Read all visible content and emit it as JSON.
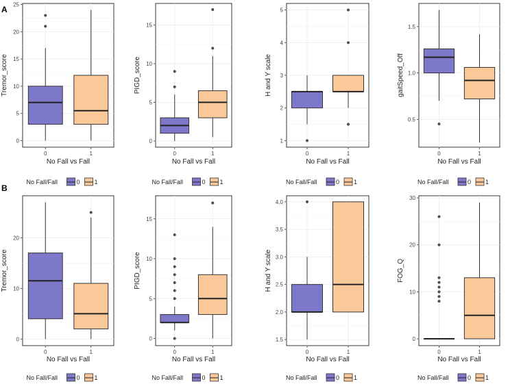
{
  "colors": {
    "group0": "#7d78c9",
    "group1": "#fbc999",
    "grid_major": "#ebebeb",
    "grid_minor": "#f5f5f5"
  },
  "rows": [
    {
      "label": "A"
    },
    {
      "label": "B"
    }
  ],
  "chart_data": [
    {
      "type": "box",
      "row": 0,
      "col": 0,
      "ylabel": "Tremor_score",
      "xlabel": "No Fall vs Fall",
      "categories": [
        "0",
        "1"
      ],
      "ylim": [
        -1.2,
        25.2
      ],
      "yticks": [
        0,
        5,
        10,
        15,
        20,
        25
      ],
      "boxes": [
        {
          "q1": 3,
          "median": 7,
          "q3": 10,
          "whisker_low": 0,
          "whisker_high": 17,
          "outliers": [
            21,
            23
          ]
        },
        {
          "q1": 3,
          "median": 5.5,
          "q3": 12,
          "whisker_low": 0,
          "whisker_high": 24,
          "outliers": []
        }
      ],
      "legend": {
        "title": "No Fall/Fall",
        "labels": [
          "0",
          "1"
        ]
      }
    },
    {
      "type": "box",
      "row": 0,
      "col": 1,
      "ylabel": "PIGD_score",
      "xlabel": "No Fall vs Fall",
      "categories": [
        "0",
        "1"
      ],
      "ylim": [
        -0.8,
        17.8
      ],
      "yticks": [
        0,
        5,
        10,
        15
      ],
      "boxes": [
        {
          "q1": 1,
          "median": 2,
          "q3": 3,
          "whisker_low": 0,
          "whisker_high": 6,
          "outliers": [
            7,
            9
          ]
        },
        {
          "q1": 3,
          "median": 5,
          "q3": 6.5,
          "whisker_low": 0.5,
          "whisker_high": 11,
          "outliers": [
            12,
            17
          ]
        }
      ],
      "legend": {
        "title": "No Fall/Fall",
        "labels": [
          "0",
          "1"
        ]
      }
    },
    {
      "type": "box",
      "row": 0,
      "col": 2,
      "ylabel": "H and Y scale",
      "xlabel": "No Fall vs Fall",
      "categories": [
        "0",
        "1"
      ],
      "ylim": [
        0.8,
        5.2
      ],
      "yticks": [
        1,
        2,
        3,
        4,
        5
      ],
      "boxes": [
        {
          "q1": 2,
          "median": 2.5,
          "q3": 2.5,
          "whisker_low": 1.5,
          "whisker_high": 3,
          "outliers": [
            1
          ]
        },
        {
          "q1": 2.5,
          "median": 2.5,
          "q3": 3,
          "whisker_low": 2,
          "whisker_high": 3,
          "outliers": [
            1.5,
            4,
            5
          ]
        }
      ],
      "legend": {
        "title": "No Fall/Fall",
        "labels": [
          "0",
          "1"
        ]
      }
    },
    {
      "type": "box",
      "row": 0,
      "col": 3,
      "ylabel": "gaitSpeed_Off",
      "xlabel": "No Fall vs Fall",
      "categories": [
        "0",
        "1"
      ],
      "ylim": [
        0.2,
        1.75
      ],
      "yticks": [
        0.5,
        1.0,
        1.5
      ],
      "boxes": [
        {
          "q1": 1.0,
          "median": 1.17,
          "q3": 1.26,
          "whisker_low": 0.7,
          "whisker_high": 1.68,
          "outliers": [
            0.45
          ]
        },
        {
          "q1": 0.72,
          "median": 0.92,
          "q3": 1.06,
          "whisker_low": 0.25,
          "whisker_high": 1.42,
          "outliers": []
        }
      ],
      "legend": {
        "title": "No Fall/Fall",
        "labels": [
          "0",
          "1"
        ]
      }
    },
    {
      "type": "box",
      "row": 1,
      "col": 0,
      "ylabel": "Tremor_score",
      "xlabel": "No Fall vs Fall",
      "categories": [
        "0",
        "1"
      ],
      "ylim": [
        -1.3,
        28.3
      ],
      "yticks": [
        0,
        10,
        20
      ],
      "boxes": [
        {
          "q1": 4,
          "median": 11.5,
          "q3": 17,
          "whisker_low": 0,
          "whisker_high": 27,
          "outliers": []
        },
        {
          "q1": 2,
          "median": 5,
          "q3": 11,
          "whisker_low": 0,
          "whisker_high": 24,
          "outliers": [
            25
          ]
        }
      ],
      "legend": {
        "title": "No Fall/Fall",
        "labels": [
          "0",
          "1"
        ]
      }
    },
    {
      "type": "box",
      "row": 1,
      "col": 1,
      "ylabel": "PIGD_score",
      "xlabel": "No Fall vs Fall",
      "categories": [
        "0",
        "1"
      ],
      "ylim": [
        -0.9,
        17.9
      ],
      "yticks": [
        0,
        5,
        10,
        15
      ],
      "boxes": [
        {
          "q1": 2,
          "median": 2,
          "q3": 3,
          "whisker_low": 1,
          "whisker_high": 4,
          "outliers": [
            0,
            5,
            6,
            7,
            8,
            9,
            10,
            13
          ]
        },
        {
          "q1": 3,
          "median": 5,
          "q3": 8,
          "whisker_low": 0,
          "whisker_high": 14,
          "outliers": [
            17
          ]
        }
      ],
      "legend": {
        "title": "No Fall/Fall",
        "labels": [
          "0",
          "1"
        ]
      }
    },
    {
      "type": "box",
      "row": 1,
      "col": 2,
      "ylabel": "H and Y scale",
      "xlabel": "No Fall vs Fall",
      "categories": [
        "0",
        "1"
      ],
      "ylim": [
        1.39,
        4.11
      ],
      "yticks": [
        1.5,
        2.0,
        2.5,
        3.0,
        3.5,
        4.0
      ],
      "boxes": [
        {
          "q1": 2,
          "median": 2,
          "q3": 2.5,
          "whisker_low": 1.5,
          "whisker_high": 3,
          "outliers": [
            4
          ]
        },
        {
          "q1": 2,
          "median": 2.5,
          "q3": 4,
          "whisker_low": 2,
          "whisker_high": 4,
          "outliers": []
        }
      ],
      "legend": {
        "title": "No Fall/Fall",
        "labels": [
          "0",
          "1"
        ]
      }
    },
    {
      "type": "box",
      "row": 1,
      "col": 3,
      "ylabel": "FOG_Q",
      "xlabel": "No Fall vs Fall",
      "categories": [
        "0",
        "1"
      ],
      "ylim": [
        -1.45,
        30.45
      ],
      "yticks": [
        0,
        10,
        20,
        30
      ],
      "boxes": [
        {
          "q1": 0,
          "median": 0,
          "q3": 0,
          "whisker_low": 0,
          "whisker_high": 0,
          "outliers": [
            8,
            9,
            10,
            11,
            12,
            13,
            20,
            26
          ]
        },
        {
          "q1": 0,
          "median": 5,
          "q3": 13,
          "whisker_low": 0,
          "whisker_high": 29,
          "outliers": []
        }
      ],
      "legend": {
        "title": "No Fall/Fall",
        "labels": [
          "0",
          "1"
        ]
      }
    }
  ]
}
